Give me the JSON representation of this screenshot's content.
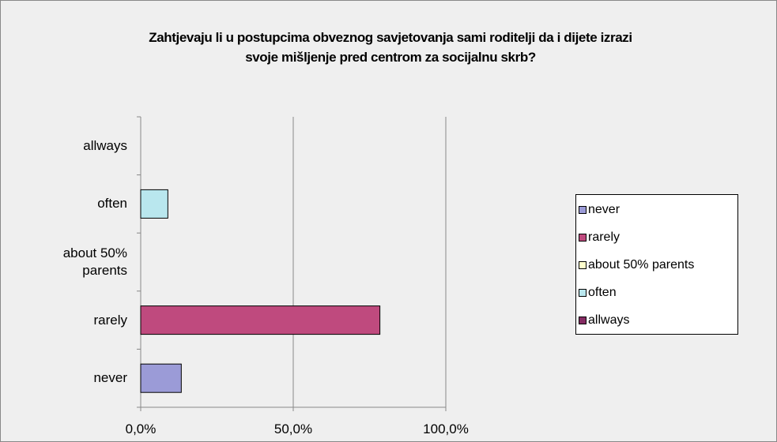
{
  "chart_data": {
    "type": "barh",
    "title": "Zahtjevaju li u postupcima obveznog savjetovanja sami roditelji da i dijete izrazi svoje mišljenje pred centrom za socijalnu skrb?",
    "categories": [
      "never",
      "rarely",
      "about 50% parents",
      "often",
      "allways"
    ],
    "values": [
      13.3,
      78.4,
      0,
      8.9,
      0
    ],
    "colors": [
      "#9b9bd7",
      "#bf4a7e",
      "#ffffcc",
      "#b9e7ee",
      "#842b62"
    ],
    "xlim": [
      0,
      100
    ],
    "xticks": [
      {
        "value": 0,
        "label": "0,0%"
      },
      {
        "value": 50,
        "label": "50,0%"
      },
      {
        "value": 100,
        "label": "100,0%"
      }
    ],
    "grid": true,
    "legend": "right"
  }
}
